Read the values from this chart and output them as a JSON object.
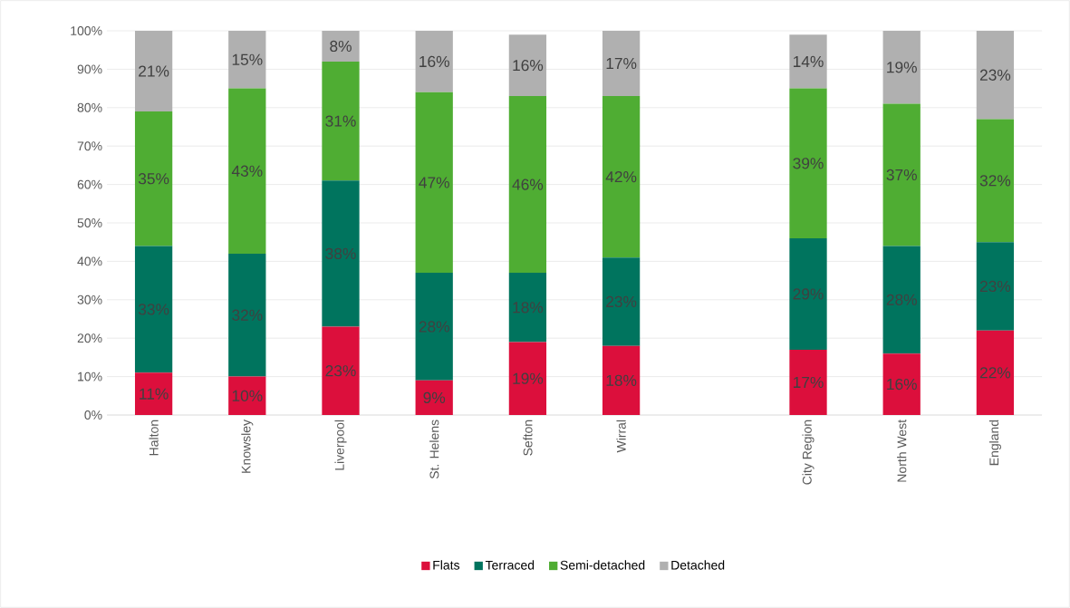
{
  "chart_data": {
    "type": "bar",
    "stacked": true,
    "categories": [
      "Halton",
      "Knowsley",
      "Liverpool",
      "St. Helens",
      "Sefton",
      "Wirral",
      null,
      "City Region",
      "North West",
      "England"
    ],
    "series": [
      {
        "name": "Flats",
        "color": "#dc0f3c",
        "values": [
          11,
          10,
          23,
          9,
          19,
          18,
          null,
          17,
          16,
          22
        ],
        "value_labels": [
          "11%",
          "10%",
          "23%",
          "9%",
          "19%",
          "18%",
          null,
          "17%",
          "16%",
          "22%"
        ]
      },
      {
        "name": "Terraced",
        "color": "#00745e",
        "values": [
          33,
          32,
          38,
          28,
          18,
          23,
          null,
          29,
          28,
          23
        ],
        "value_labels": [
          "33%",
          "32%",
          "38%",
          "28%",
          "18%",
          "23%",
          null,
          "29%",
          "28%",
          "23%"
        ]
      },
      {
        "name": "Semi-detached",
        "color": "#4fad33",
        "values": [
          35,
          43,
          31,
          47,
          46,
          42,
          null,
          39,
          37,
          32
        ],
        "value_labels": [
          "35%",
          "43%",
          "31%",
          "47%",
          "46%",
          "42%",
          null,
          "39%",
          "37%",
          "32%"
        ]
      },
      {
        "name": "Detached",
        "color": "#b0b0b0",
        "values": [
          21,
          15,
          8,
          16,
          16,
          17,
          null,
          14,
          19,
          23
        ],
        "value_labels": [
          "21%",
          "15%",
          "8%",
          "16%",
          "16%",
          "17%",
          null,
          "14%",
          "19%",
          "23%"
        ]
      }
    ],
    "ylim": [
      0,
      100
    ],
    "yticks": [
      {
        "value": 0,
        "label": "0%"
      },
      {
        "value": 10,
        "label": "10%"
      },
      {
        "value": 20,
        "label": "20%"
      },
      {
        "value": 30,
        "label": "30%"
      },
      {
        "value": 40,
        "label": "40%"
      },
      {
        "value": 50,
        "label": "50%"
      },
      {
        "value": 60,
        "label": "60%"
      },
      {
        "value": 70,
        "label": "70%"
      },
      {
        "value": 80,
        "label": "80%"
      },
      {
        "value": 90,
        "label": "90%"
      },
      {
        "value": 100,
        "label": "100%"
      }
    ],
    "grid": "y",
    "legend": "bottom"
  }
}
